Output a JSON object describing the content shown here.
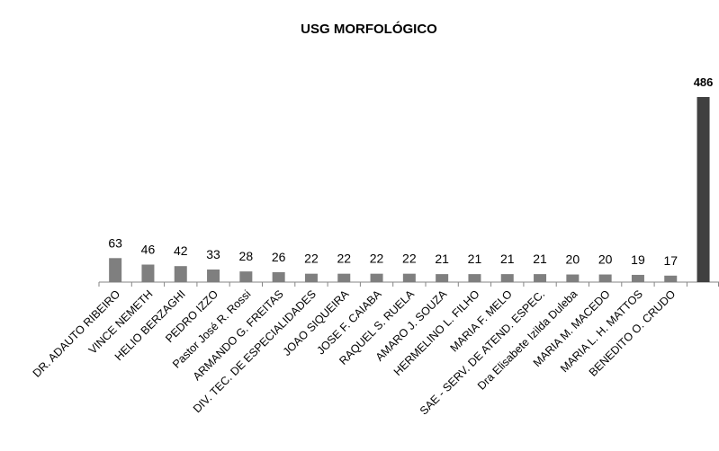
{
  "chart_data": {
    "type": "bar",
    "title": "USG MORFOLÓGICO",
    "categories": [
      "DR. ADAUTO RIBEIRO",
      "VINCE NEMETH",
      "HELIO BERZAGHI",
      "PEDRO IZZO",
      "Pastor José R. Rossi",
      "ARMANDO G. FREITAS",
      "DIV. TEC. DE ESPECIALIDADES",
      "JOAO SIQUEIRA",
      "JOSE F. CAIABA",
      "RAQUEL S. RUELA",
      "AMARO J. SOUZA",
      "HERMELINO L. FILHO",
      "MARIA F. MELO",
      "SAE - SERV. DE ATEND. ESPEC.",
      "Dra Elisabete Izilda Duleba",
      "MARIA M. MACEDO",
      "MARIA L. H. MATTOS",
      "BENEDITO O. CRUDO",
      null
    ],
    "values": [
      63,
      46,
      42,
      33,
      28,
      26,
      22,
      22,
      22,
      22,
      21,
      21,
      21,
      21,
      20,
      20,
      19,
      17,
      486
    ],
    "color": "#7f7f7f",
    "highlight": 18,
    "highlight_color": "#404040"
  }
}
